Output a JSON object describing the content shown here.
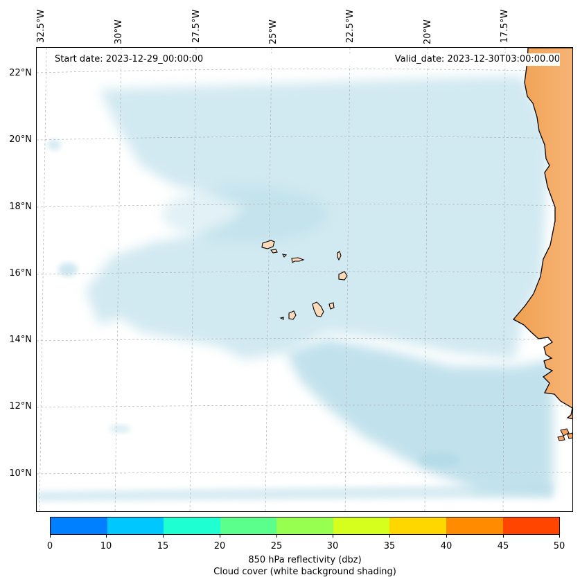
{
  "map": {
    "start_date": "Start date: 2023-12-29_00:00:00",
    "valid_date": "Valid_date: 2023-12-30T03:00:00.00",
    "longitude_labels": [
      "32.5°W",
      "30°W",
      "27.5°W",
      "25°W",
      "22.5°W",
      "20°W",
      "17.5°W"
    ],
    "latitude_labels": [
      "22°N",
      "20°N",
      "18°N",
      "16°N",
      "14°N",
      "12°N",
      "10°N"
    ],
    "land_color": "#f4a460",
    "island_color": "#ffdab9",
    "cloud_color": "#add8e6",
    "coastline_color": "#000000"
  },
  "colorbar": {
    "ticks": [
      "0",
      "10",
      "15",
      "20",
      "25",
      "30",
      "35",
      "40",
      "45",
      "50"
    ],
    "colors": [
      "#0080ff",
      "#00c8ff",
      "#1effd2",
      "#5aff8c",
      "#96ff50",
      "#d7ff1e",
      "#ffd700",
      "#ff8c00",
      "#ff4500"
    ],
    "label_line1": "850 hPa reflectivity (dbz)",
    "label_line2": "Cloud cover (white background shading)"
  }
}
